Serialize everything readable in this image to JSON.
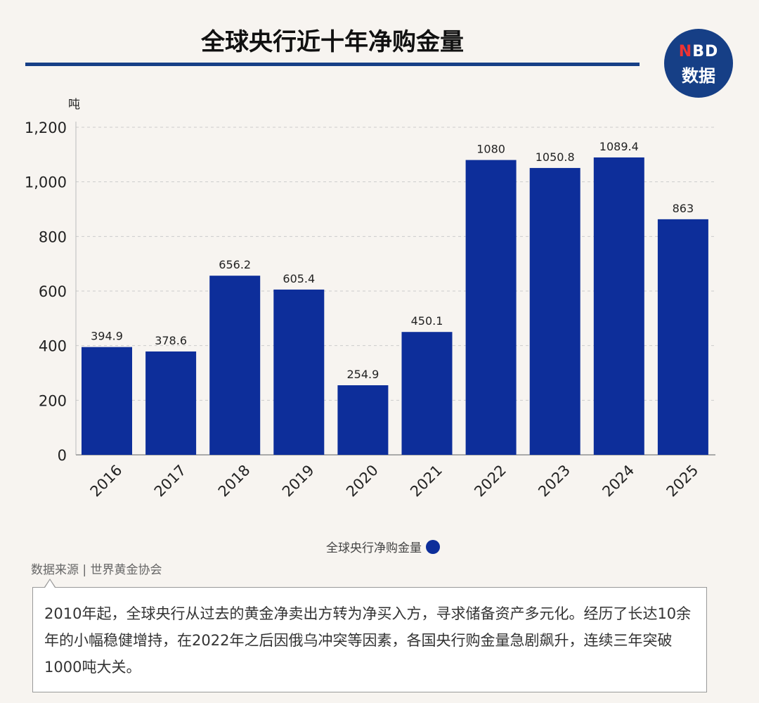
{
  "logo": {
    "line1_accent": "N",
    "line1_rest": "BD",
    "line2": "数据"
  },
  "source": "数据来源 | 世界黄金协会",
  "note": "2010年起，全球央行从过去的黄金净卖出方转为净买入方，寻求储备资产多元化。经历了长达10余年的小幅稳健增持，在2022年之后因俄乌冲突等因素，各国央行购金量急剧飙升，连续三年突破1000吨大关。",
  "colors": {
    "bar": "#0d2e9a",
    "rule": "#163f86"
  },
  "chart_data": {
    "type": "bar",
    "title": "全球央行近十年净购金量",
    "ylabel": "吨",
    "ylim": [
      0,
      1200
    ],
    "yticks": [
      0,
      200,
      400,
      600,
      800,
      1000,
      1200
    ],
    "ytick_labels": [
      "0",
      "200",
      "400",
      "600",
      "800",
      "1,000",
      "1,200"
    ],
    "grid": true,
    "legend": "bottom-center",
    "categories": [
      "2016",
      "2017",
      "2018",
      "2019",
      "2020",
      "2021",
      "2022",
      "2023",
      "2024",
      "2025"
    ],
    "series": [
      {
        "name": "全球央行净购金量",
        "values": [
          394.9,
          378.6,
          656.2,
          605.4,
          254.9,
          450.1,
          1080,
          1050.8,
          1089.4,
          863
        ]
      }
    ],
    "data_labels": [
      "394.9",
      "378.6",
      "656.2",
      "605.4",
      "254.9",
      "450.1",
      "1080",
      "1050.8",
      "1089.4",
      "863"
    ]
  }
}
